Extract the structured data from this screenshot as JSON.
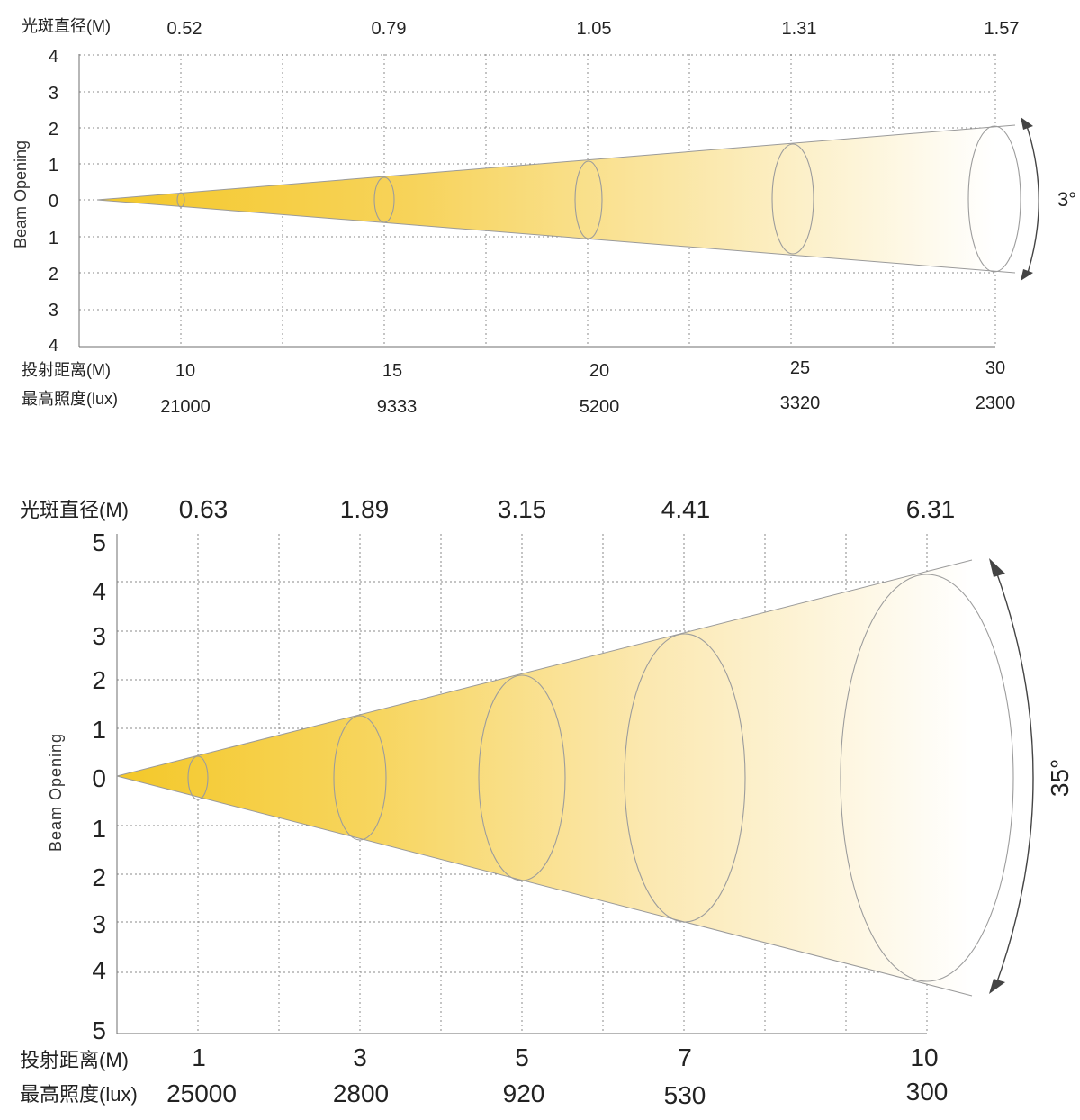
{
  "charts": [
    {
      "beam_angle_label": "3°",
      "row_labels": {
        "spot_diameter": "光斑直径(M)",
        "throw_distance": "投射距离(M)",
        "max_illuminance": "最高照度(lux)"
      }
    },
    {
      "beam_angle_label": "35°",
      "row_labels": {
        "spot_diameter": "光斑直径(M)",
        "throw_distance": "投射距离(M)",
        "max_illuminance": "最高照度(lux)"
      }
    }
  ],
  "chart_data": [
    {
      "type": "area",
      "ylabel": "Beam Opening",
      "beam_angle": "3°",
      "y_ticks": [
        "4",
        "3",
        "2",
        "1",
        "0",
        "1",
        "2",
        "3",
        "4"
      ],
      "ylim": [
        -4,
        4
      ],
      "grid": true,
      "throw_distance_m": [
        "10",
        "15",
        "20",
        "25",
        "30"
      ],
      "spot_diameter_m": [
        "0.52",
        "0.79",
        "1.05",
        "1.31",
        "1.57"
      ],
      "max_illuminance_lux": [
        "21000",
        "9333",
        "5200",
        "3320",
        "2300"
      ],
      "colors": {
        "beam_start": "#f5c830",
        "beam_end": "#ffffff"
      }
    },
    {
      "type": "area",
      "ylabel": "Beam Opening",
      "beam_angle": "35°",
      "y_ticks": [
        "5",
        "4",
        "3",
        "2",
        "1",
        "0",
        "1",
        "2",
        "3",
        "4",
        "5"
      ],
      "ylim": [
        -5,
        5
      ],
      "grid": true,
      "throw_distance_m": [
        "1",
        "3",
        "5",
        "7",
        "10"
      ],
      "spot_diameter_m": [
        "0.63",
        "1.89",
        "3.15",
        "4.41",
        "6.31"
      ],
      "max_illuminance_lux": [
        "25000",
        "2800",
        "920",
        "530",
        "300"
      ],
      "colors": {
        "beam_start": "#f5c830",
        "beam_end": "#ffffff"
      }
    }
  ]
}
